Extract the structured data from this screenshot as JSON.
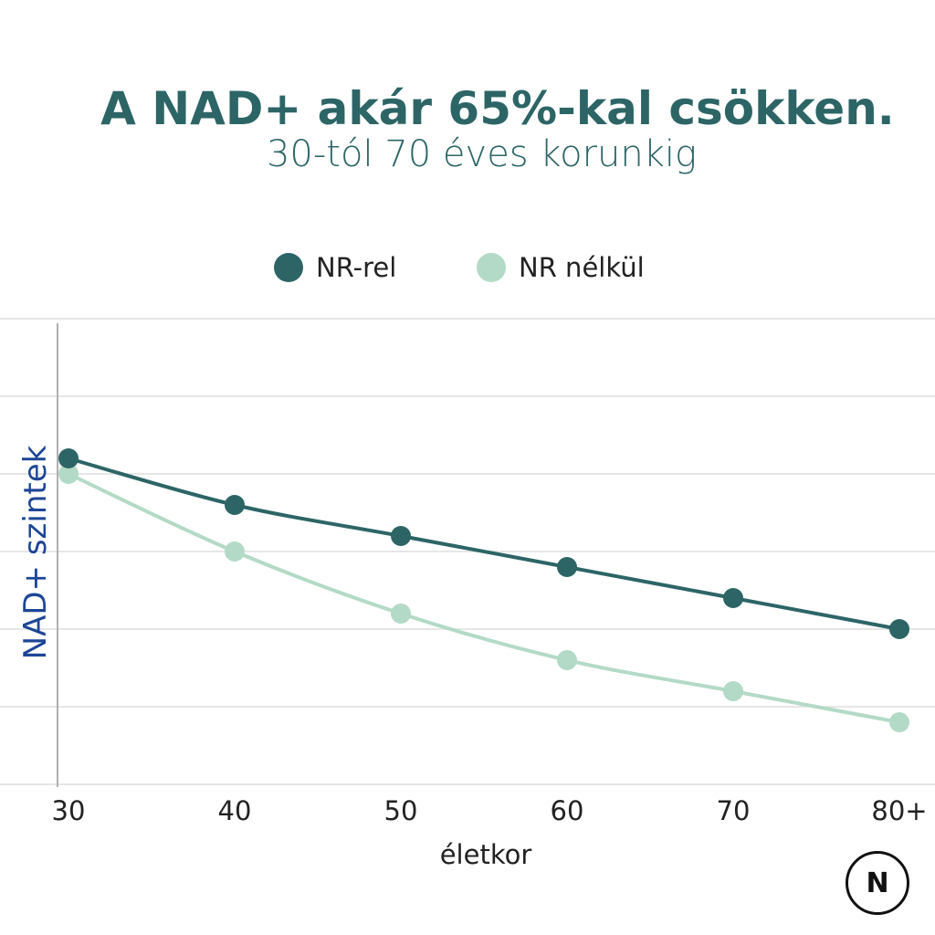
{
  "chart_data": {
    "type": "line",
    "title": "A NAD+ akár 65%-kal csökken.",
    "subtitle": "30-tól 70 éves korunkig",
    "xlabel": "életkor",
    "ylabel": "NAD+ szintek",
    "categories": [
      "30",
      "40",
      "50",
      "60",
      "70",
      "80+"
    ],
    "ylim": [
      0,
      6
    ],
    "grid": true,
    "legend_position": "top",
    "series": [
      {
        "name": "NR-rel",
        "color": "#2d6566",
        "values": [
          4.2,
          3.6,
          3.2,
          2.8,
          2.4,
          2.0
        ]
      },
      {
        "name": "NR nélkül",
        "color": "#b3dac6",
        "values": [
          4.0,
          3.0,
          2.2,
          1.6,
          1.2,
          0.8
        ]
      }
    ]
  },
  "colors": {
    "title": "#2d6566",
    "ylabel": "#1d4596",
    "grid": "#dddddd"
  },
  "logo": {
    "text": "N"
  }
}
